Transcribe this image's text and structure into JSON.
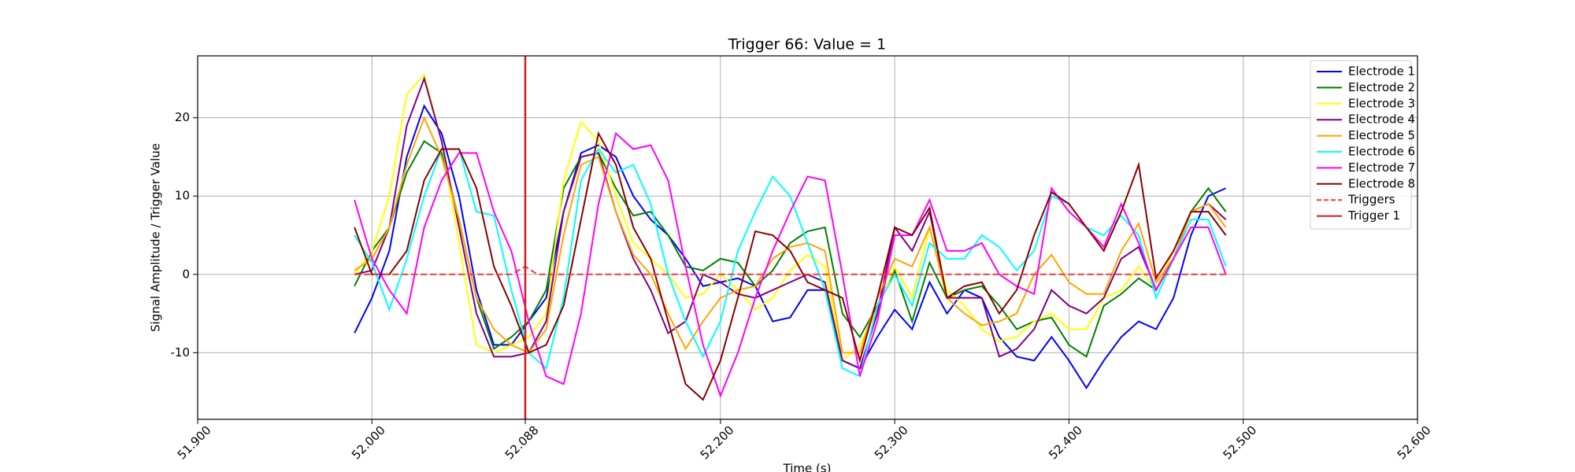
{
  "chart_data": {
    "type": "line",
    "title": "Trigger 66: Value = 1",
    "xlabel": "Time (s)",
    "ylabel": "Signal Amplitude / Trigger Value",
    "xlim": [
      51.9,
      52.6
    ],
    "xticks": [
      {
        "value": 51.9,
        "label": "51.900"
      },
      {
        "value": 52.0,
        "label": "52.000"
      },
      {
        "value": 52.088,
        "label": "52.088"
      },
      {
        "value": 52.2,
        "label": "52.200"
      },
      {
        "value": 52.3,
        "label": "52.300"
      },
      {
        "value": 52.4,
        "label": "52.400"
      },
      {
        "value": 52.5,
        "label": "52.500"
      },
      {
        "value": 52.6,
        "label": "52.600"
      }
    ],
    "ylim": [
      -18.5,
      27.9
    ],
    "yticks": [
      -10,
      0,
      10,
      20
    ],
    "grid": true,
    "legend": "upper right",
    "x": [
      51.99,
      52.0,
      52.01,
      52.02,
      52.03,
      52.04,
      52.05,
      52.06,
      52.07,
      52.08,
      52.09,
      52.1,
      52.11,
      52.12,
      52.13,
      52.14,
      52.15,
      52.16,
      52.17,
      52.18,
      52.19,
      52.2,
      52.21,
      52.22,
      52.23,
      52.24,
      52.25,
      52.26,
      52.27,
      52.28,
      52.29,
      52.3,
      52.31,
      52.32,
      52.33,
      52.34,
      52.35,
      52.36,
      52.37,
      52.38,
      52.39,
      52.4,
      52.41,
      52.42,
      52.43,
      52.44,
      52.45,
      52.46,
      52.47,
      52.48,
      52.49
    ],
    "series": [
      {
        "name": "Electrode 1",
        "color": "#0000ff",
        "values": [
          -7.5,
          -3,
          3,
          15,
          21.5,
          18,
          10,
          -2,
          -9,
          -9,
          -6,
          -3,
          8,
          15.5,
          16.5,
          15,
          10,
          7,
          5,
          2,
          -1.5,
          -1,
          -0.5,
          -1.5,
          -6,
          -5.5,
          -2,
          -2,
          -11,
          -12,
          -8,
          -4.5,
          -7,
          -1,
          -5,
          -2,
          -3,
          -8,
          -10.5,
          -11,
          -8,
          -11,
          -14.5,
          -11,
          -8,
          -6,
          -7,
          -3,
          5,
          10,
          11
        ]
      },
      {
        "name": "Electrode 2",
        "color": "#008000",
        "values": [
          -1.5,
          3,
          6,
          13,
          17,
          15.5,
          7,
          -3,
          -9.5,
          -8,
          -6,
          -2,
          11,
          15,
          15.5,
          11,
          7.5,
          8,
          5,
          1,
          0.5,
          2,
          1.5,
          -1.5,
          0.5,
          4,
          5.5,
          6,
          -5,
          -8,
          -4,
          0.5,
          -6,
          1.5,
          -3,
          -2,
          -1.5,
          -4,
          -7,
          -6,
          -5.5,
          -9,
          -10.5,
          -4,
          -2.5,
          -0.5,
          -2,
          2,
          8,
          11,
          8
        ]
      },
      {
        "name": "Electrode 3",
        "color": "#ffff00",
        "values": [
          0,
          3,
          10,
          23,
          25.5,
          17,
          4,
          -9,
          -10,
          -9,
          -8,
          -5,
          12,
          19.5,
          17,
          10,
          4,
          2,
          0,
          -3,
          -2.5,
          0,
          -2,
          -4.5,
          -3,
          0.5,
          2.5,
          1,
          -11,
          -9,
          -4.5,
          1,
          -3,
          6,
          -2,
          -4,
          -7,
          -8.5,
          -8,
          -6,
          -5,
          -7,
          -7,
          -3,
          -2,
          1,
          -2,
          3,
          8,
          9,
          7
        ]
      },
      {
        "name": "Electrode 4",
        "color": "#800080",
        "values": [
          0,
          0.5,
          6,
          19,
          25,
          17,
          6,
          -5,
          -10.5,
          -10.5,
          -10,
          -6,
          8,
          15,
          15.5,
          8,
          2,
          -2,
          -7.5,
          -6,
          0,
          -1,
          -2.5,
          -3,
          -2,
          -1,
          0,
          -1,
          -11,
          -12,
          -5,
          6,
          3,
          8,
          -3,
          -3,
          -3,
          -10.5,
          -9.5,
          -7,
          -2,
          -4,
          -5,
          -3,
          2,
          3.5,
          -2,
          2,
          8,
          9,
          7
        ]
      },
      {
        "name": "Electrode 5",
        "color": "#ffa500",
        "values": [
          0.5,
          2,
          6,
          14,
          20,
          15,
          7,
          -3,
          -7,
          -9,
          -10,
          -7,
          5,
          14,
          15,
          8,
          2.5,
          0,
          -5,
          -9.5,
          -6,
          -3,
          -2,
          -1.5,
          2,
          3.5,
          4,
          3,
          -10,
          -10,
          -3,
          2,
          1,
          6,
          -3,
          -5,
          -6.5,
          -6,
          -5,
          0,
          2.5,
          -1,
          -2.5,
          -2.5,
          3,
          6.5,
          -1,
          2,
          8,
          9,
          6
        ]
      },
      {
        "name": "Electrode 6",
        "color": "#00ffff",
        "values": [
          5,
          1.5,
          -4.5,
          2,
          10,
          16,
          16,
          8,
          7.5,
          -2,
          -10,
          -12,
          -3,
          12,
          16,
          13,
          14,
          9,
          0,
          -6,
          -10.5,
          -6,
          3,
          8,
          12.5,
          10,
          4,
          -2,
          -12,
          -13,
          -4,
          0,
          -4,
          4,
          2,
          2,
          5,
          3.5,
          0.5,
          3,
          10,
          9,
          6,
          5,
          7.5,
          5,
          -3,
          2,
          7,
          7,
          1
        ]
      },
      {
        "name": "Electrode 7",
        "color": "#ff00ff",
        "values": [
          9.5,
          2,
          -2,
          -5,
          6,
          12,
          15.5,
          15.5,
          8,
          3,
          -6,
          -13,
          -14,
          -5,
          9,
          18,
          16,
          16.5,
          12,
          1,
          -9,
          -15.5,
          -10,
          -3,
          3,
          8,
          12.5,
          12,
          0,
          -13,
          -6,
          5,
          5,
          9.5,
          3,
          3,
          4,
          0,
          -1.5,
          -2.5,
          11,
          8,
          6,
          3.5,
          9,
          4,
          -2,
          2,
          6,
          6,
          0
        ]
      },
      {
        "name": "Electrode 8",
        "color": "#8b0000",
        "values": [
          6,
          0,
          0,
          3,
          12,
          16,
          16,
          11,
          1,
          -4,
          -10,
          -9,
          -4,
          7,
          18,
          14,
          6,
          2,
          -6,
          -14,
          -16,
          -11,
          -3,
          5.5,
          5,
          3,
          -1,
          -2,
          -3,
          -11,
          -3,
          6,
          5,
          8.5,
          -3,
          -1.5,
          -1,
          -5,
          -2,
          5,
          10.5,
          9,
          6,
          3,
          8,
          14,
          -0.5,
          3,
          8,
          8,
          5
        ]
      }
    ],
    "triggers": {
      "name": "Triggers",
      "color": "#f03c3c",
      "linestyle": "dashed",
      "x": [
        51.99,
        52.08,
        52.088,
        52.095,
        52.49
      ],
      "values": [
        0,
        0,
        1,
        0,
        0
      ]
    },
    "vline": {
      "name": "Trigger 1",
      "color": "#d41a1a",
      "x": 52.088
    }
  }
}
